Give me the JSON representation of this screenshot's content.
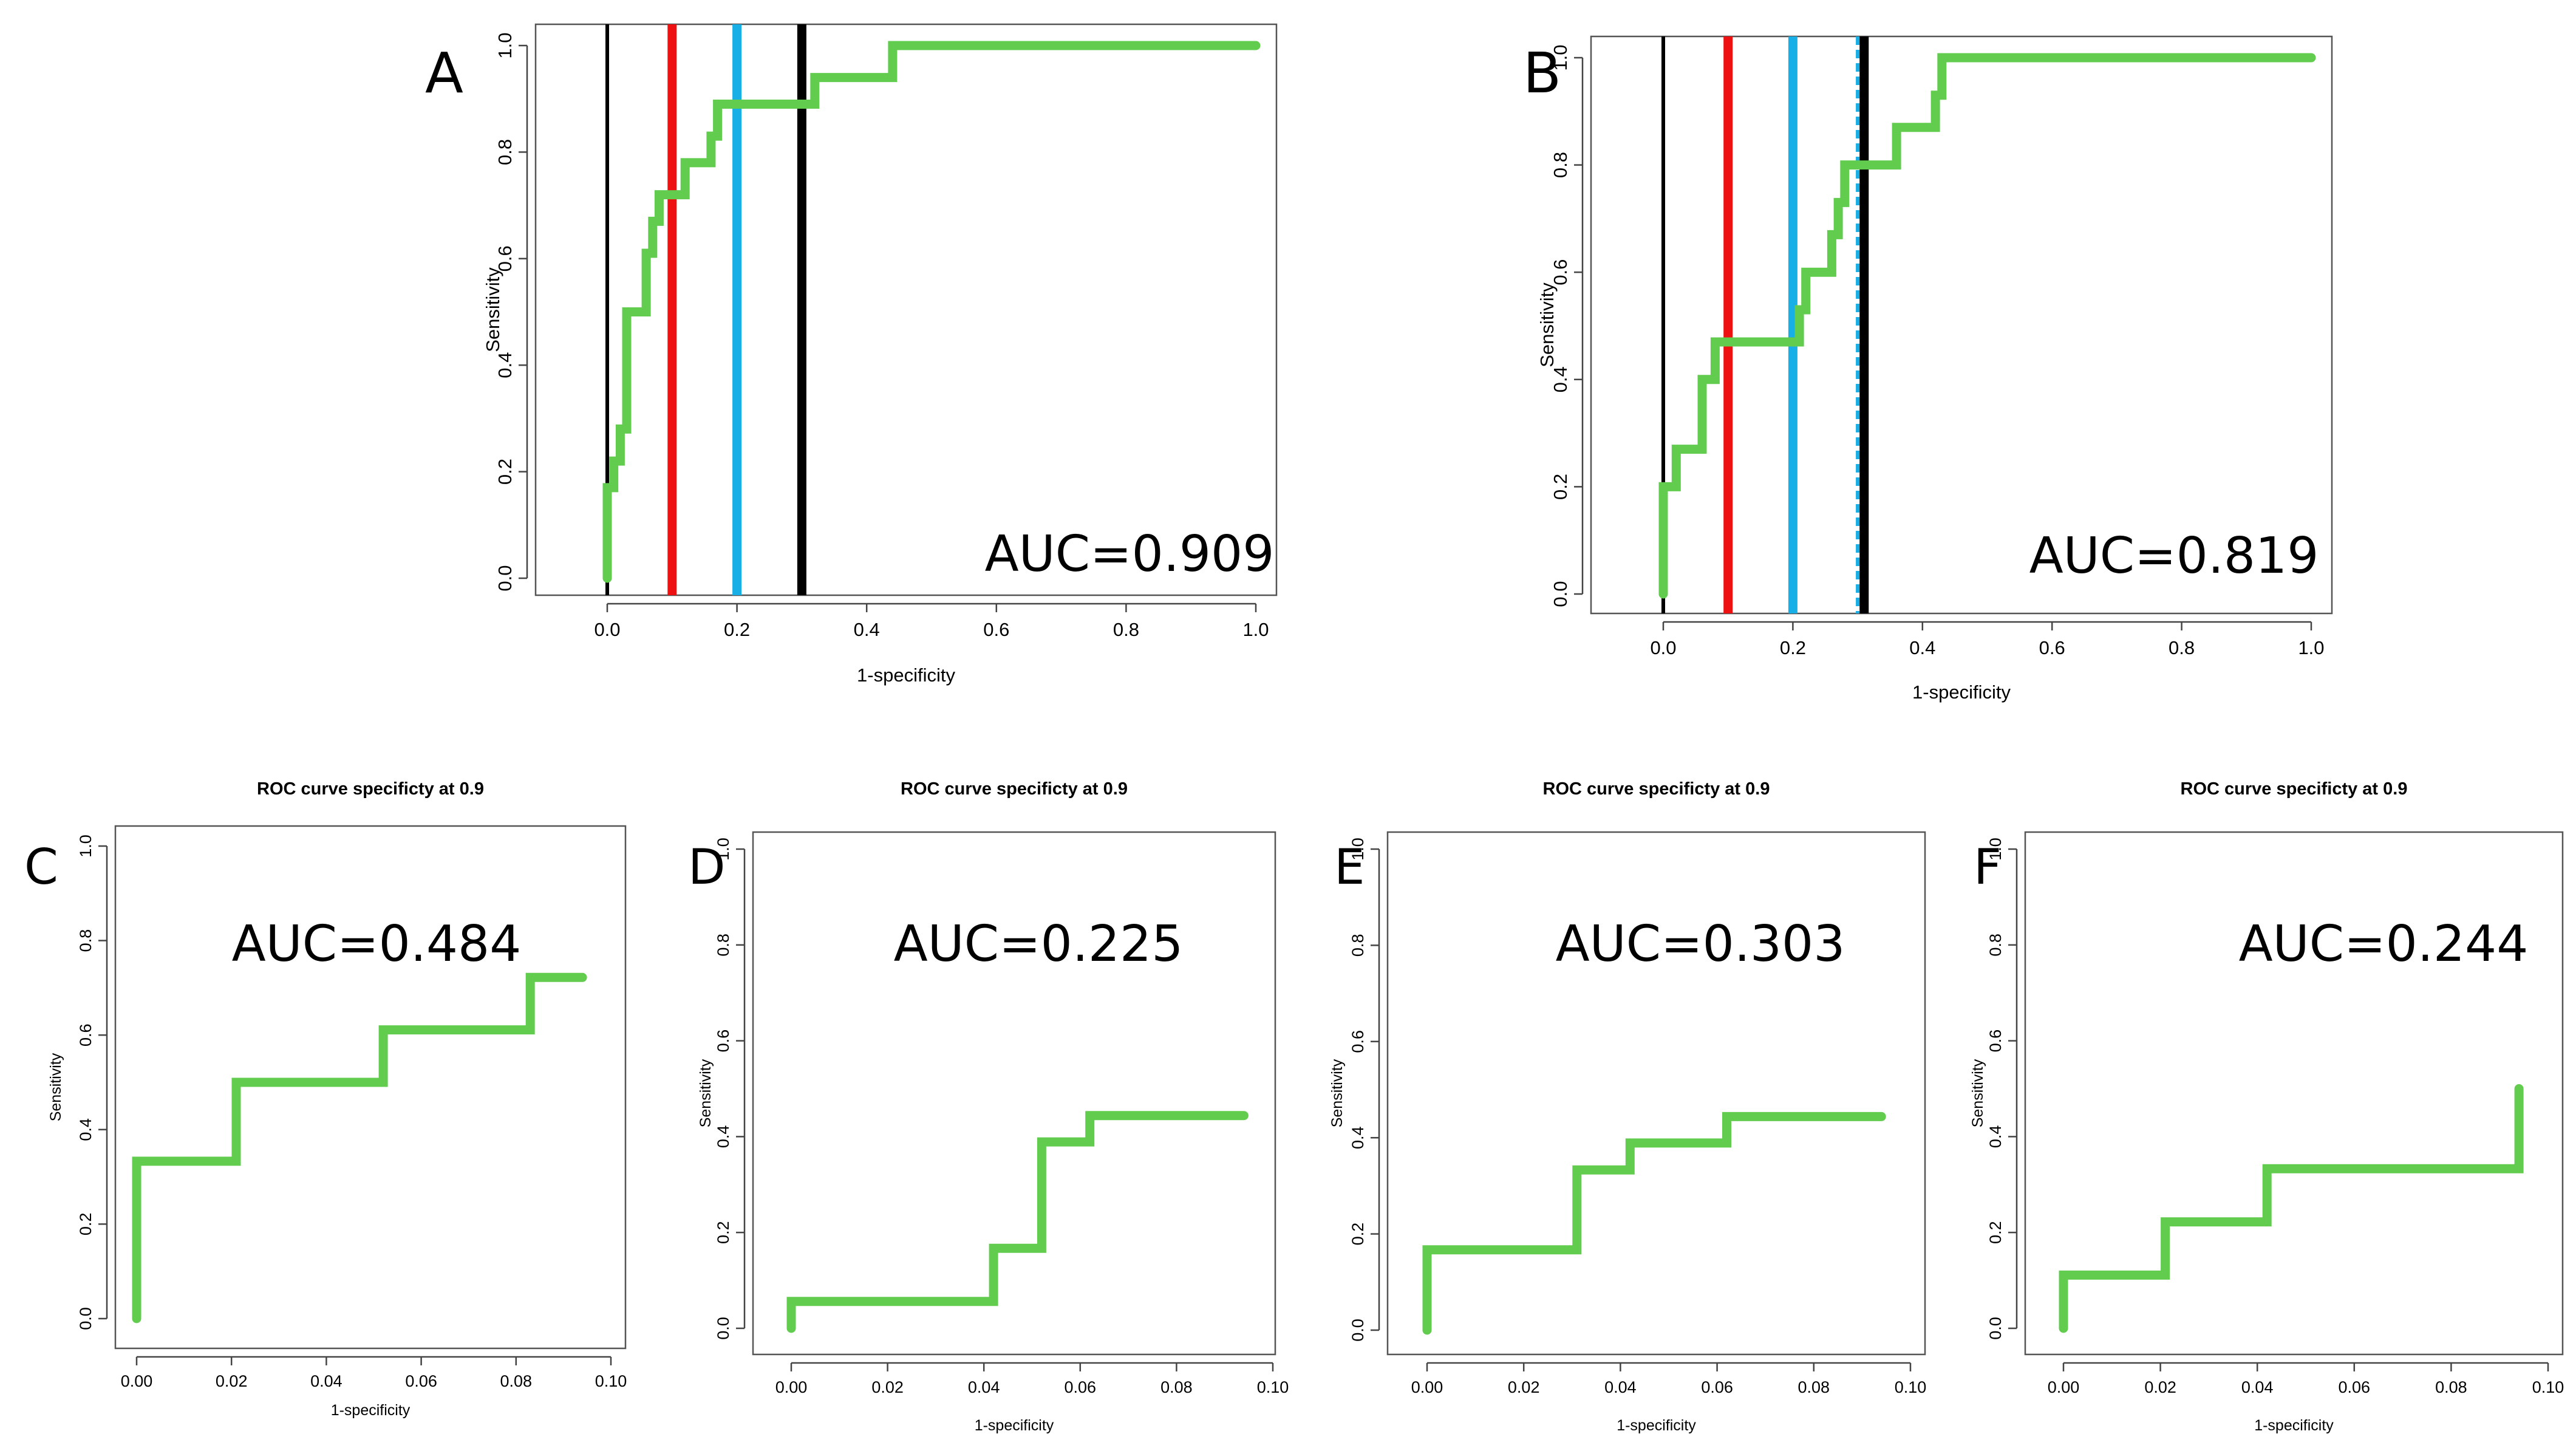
{
  "figure": {
    "description_title": ""
  },
  "colors": {
    "curve": "#62CC4F",
    "red_line": "#EE1111",
    "blue_line": "#18AEE6",
    "black_line": "#000000",
    "frame": "#555555"
  },
  "chart_data": [
    {
      "id": "A",
      "type": "line",
      "panel_label": "A",
      "title": "",
      "xlabel": "1-specificity",
      "ylabel": "Sensitivity",
      "xlim": [
        0,
        1
      ],
      "ylim": [
        0,
        1
      ],
      "xticks": [
        "0.0",
        "0.2",
        "0.4",
        "0.6",
        "0.8",
        "1.0"
      ],
      "yticks": [
        "0.0",
        "0.2",
        "0.4",
        "0.6",
        "0.8",
        "1.0"
      ],
      "auc_text": "AUC=0.909",
      "series": [
        {
          "name": "ROC",
          "x": [
            0,
            0,
            0.01,
            0.01,
            0.02,
            0.02,
            0.03,
            0.03,
            0.06,
            0.06,
            0.07,
            0.07,
            0.08,
            0.08,
            0.12,
            0.12,
            0.16,
            0.16,
            0.17,
            0.17,
            0.3,
            0.3,
            0.32,
            0.32,
            0.44,
            0.44,
            1.0
          ],
          "y": [
            0,
            0.17,
            0.17,
            0.22,
            0.22,
            0.28,
            0.28,
            0.5,
            0.5,
            0.61,
            0.61,
            0.67,
            0.67,
            0.72,
            0.72,
            0.78,
            0.78,
            0.83,
            0.83,
            0.89,
            0.89,
            0.89,
            0.89,
            0.94,
            0.94,
            1.0,
            1.0
          ]
        }
      ],
      "vlines": [
        {
          "x": 0.0,
          "color": "black",
          "width": "thin"
        },
        {
          "x": 0.1,
          "color": "red",
          "width": "thick"
        },
        {
          "x": 0.2,
          "color": "blue",
          "width": "thick"
        },
        {
          "x": 0.3,
          "color": "black",
          "width": "thick"
        }
      ]
    },
    {
      "id": "B",
      "type": "line",
      "panel_label": "B",
      "title": "",
      "xlabel": "1-specificity",
      "ylabel": "Sensitivity",
      "xlim": [
        0,
        1
      ],
      "ylim": [
        0,
        1
      ],
      "xticks": [
        "0.0",
        "0.2",
        "0.4",
        "0.6",
        "0.8",
        "1.0"
      ],
      "yticks": [
        "0.0",
        "0.2",
        "0.4",
        "0.6",
        "0.8",
        "1.0"
      ],
      "auc_text": "AUC=0.819",
      "series": [
        {
          "name": "ROC",
          "x": [
            0,
            0,
            0.02,
            0.02,
            0.06,
            0.06,
            0.08,
            0.08,
            0.21,
            0.21,
            0.22,
            0.22,
            0.26,
            0.26,
            0.27,
            0.27,
            0.28,
            0.28,
            0.36,
            0.36,
            0.42,
            0.42,
            0.43,
            0.43,
            1.0
          ],
          "y": [
            0,
            0.2,
            0.2,
            0.27,
            0.27,
            0.4,
            0.4,
            0.47,
            0.47,
            0.53,
            0.53,
            0.6,
            0.6,
            0.67,
            0.67,
            0.73,
            0.73,
            0.8,
            0.8,
            0.87,
            0.87,
            0.93,
            0.93,
            1.0,
            1.0
          ]
        }
      ],
      "vlines": [
        {
          "x": 0.0,
          "color": "black",
          "width": "thin"
        },
        {
          "x": 0.1,
          "color": "red",
          "width": "thick"
        },
        {
          "x": 0.2,
          "color": "blue",
          "width": "thick"
        },
        {
          "x": 0.3,
          "color": "blue",
          "width": "dashed"
        },
        {
          "x": 0.31,
          "color": "black",
          "width": "thick"
        }
      ]
    },
    {
      "id": "C",
      "type": "line",
      "panel_label": "C",
      "title": "ROC curve specificty at 0.9",
      "xlabel": "1-specificity",
      "ylabel": "Sensitivity",
      "xlim": [
        0,
        0.1
      ],
      "ylim": [
        0,
        1
      ],
      "xticks": [
        "0.00",
        "0.02",
        "0.04",
        "0.06",
        "0.08",
        "0.10"
      ],
      "yticks": [
        "0.0",
        "0.2",
        "0.4",
        "0.6",
        "0.8",
        "1.0"
      ],
      "auc_text": "AUC=0.484",
      "series": [
        {
          "name": "ROC",
          "x": [
            0,
            0,
            0.021,
            0.021,
            0.052,
            0.052,
            0.083,
            0.083,
            0.094
          ],
          "y": [
            0,
            0.333,
            0.333,
            0.5,
            0.5,
            0.611,
            0.611,
            0.722,
            0.722
          ]
        }
      ],
      "vlines": []
    },
    {
      "id": "D",
      "type": "line",
      "panel_label": "D",
      "title": "ROC curve specificty at 0.9",
      "xlabel": "1-specificity",
      "ylabel": "Sensitivity",
      "xlim": [
        0,
        0.1
      ],
      "ylim": [
        0,
        1
      ],
      "xticks": [
        "0.00",
        "0.02",
        "0.04",
        "0.06",
        "0.08",
        "0.10"
      ],
      "yticks": [
        "0.0",
        "0.2",
        "0.4",
        "0.6",
        "0.8",
        "1.0"
      ],
      "auc_text": "AUC=0.225",
      "series": [
        {
          "name": "ROC",
          "x": [
            0,
            0,
            0.042,
            0.042,
            0.052,
            0.052,
            0.062,
            0.062,
            0.094
          ],
          "y": [
            0,
            0.056,
            0.056,
            0.167,
            0.167,
            0.389,
            0.389,
            0.444,
            0.444
          ]
        }
      ],
      "vlines": []
    },
    {
      "id": "E",
      "type": "line",
      "panel_label": "E",
      "title": "ROC curve specificty at 0.9",
      "xlabel": "1-specificity",
      "ylabel": "Sensitivity",
      "xlim": [
        0,
        0.1
      ],
      "ylim": [
        0,
        1
      ],
      "xticks": [
        "0.00",
        "0.02",
        "0.04",
        "0.06",
        "0.08",
        "0.10"
      ],
      "yticks": [
        "0.0",
        "0.2",
        "0.4",
        "0.6",
        "0.8",
        "1.0"
      ],
      "auc_text": "AUC=0.303",
      "series": [
        {
          "name": "ROC",
          "x": [
            0,
            0,
            0.031,
            0.031,
            0.042,
            0.042,
            0.062,
            0.062,
            0.094
          ],
          "y": [
            0,
            0.167,
            0.167,
            0.333,
            0.333,
            0.389,
            0.389,
            0.444,
            0.444
          ]
        }
      ],
      "vlines": []
    },
    {
      "id": "F",
      "type": "line",
      "panel_label": "F",
      "title": "ROC curve specificty at 0.9",
      "xlabel": "1-specificity",
      "ylabel": "Sensitivity",
      "xlim": [
        0,
        0.1
      ],
      "ylim": [
        0,
        1
      ],
      "xticks": [
        "0.00",
        "0.02",
        "0.04",
        "0.06",
        "0.08",
        "0.10"
      ],
      "yticks": [
        "0.0",
        "0.2",
        "0.4",
        "0.6",
        "0.8",
        "1.0"
      ],
      "auc_text": "AUC=0.244",
      "series": [
        {
          "name": "ROC",
          "x": [
            0,
            0,
            0.021,
            0.021,
            0.042,
            0.042,
            0.094,
            0.094
          ],
          "y": [
            0,
            0.111,
            0.111,
            0.222,
            0.222,
            0.333,
            0.333,
            0.5
          ]
        }
      ],
      "vlines": []
    }
  ]
}
